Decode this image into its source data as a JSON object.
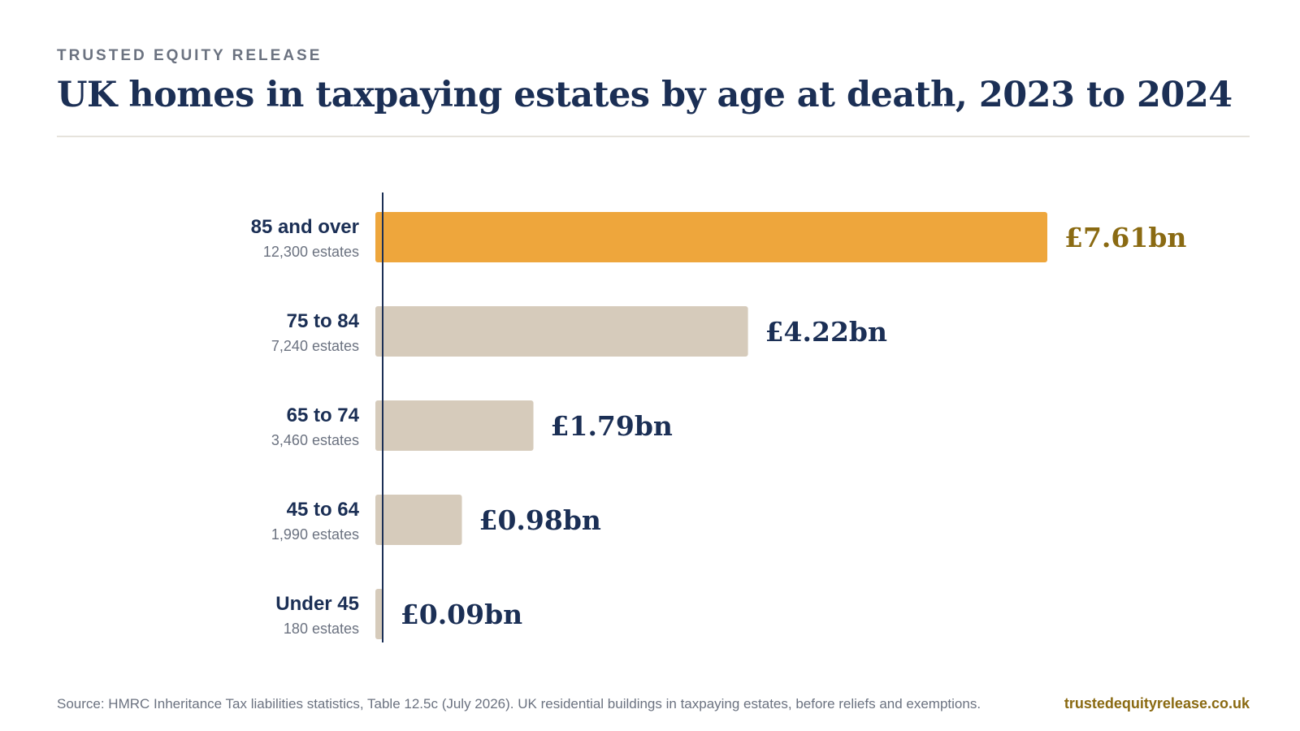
{
  "header": {
    "brand": "TRUSTED EQUITY RELEASE",
    "title": "UK homes in taxpaying estates by age at death, 2023 to 2024"
  },
  "chart_data": {
    "type": "bar",
    "orientation": "horizontal",
    "title": "UK homes in taxpaying estates by age at death, 2023 to 2024",
    "categories": [
      "85 and over",
      "75 to 84",
      "65 to 74",
      "45 to 64",
      "Under 45"
    ],
    "sublabels": [
      "12,300 estates",
      "7,240 estates",
      "3,460 estates",
      "1,990 estates",
      "180 estates"
    ],
    "values": [
      7.61,
      4.22,
      1.79,
      0.98,
      0.09
    ],
    "value_labels": [
      "£7.61bn",
      "£4.22bn",
      "£1.79bn",
      "£0.98bn",
      "£0.09bn"
    ],
    "xlim": [
      0,
      8
    ],
    "grid": false,
    "legend": "none",
    "highlight_index": 0,
    "colors": {
      "highlight_bar": "#eea63c",
      "bar": "#d6cbbb",
      "highlight_label": "#8a6a12",
      "label": "#1b2f55",
      "axis": "#1b2f55",
      "sublabel": "#6b7280"
    }
  },
  "footer": {
    "source": "Source: HMRC Inheritance Tax liabilities statistics, Table 12.5c (July 2026). UK residential buildings in taxpaying estates, before reliefs and exemptions.",
    "url": "trustedequityrelease.co.uk"
  }
}
